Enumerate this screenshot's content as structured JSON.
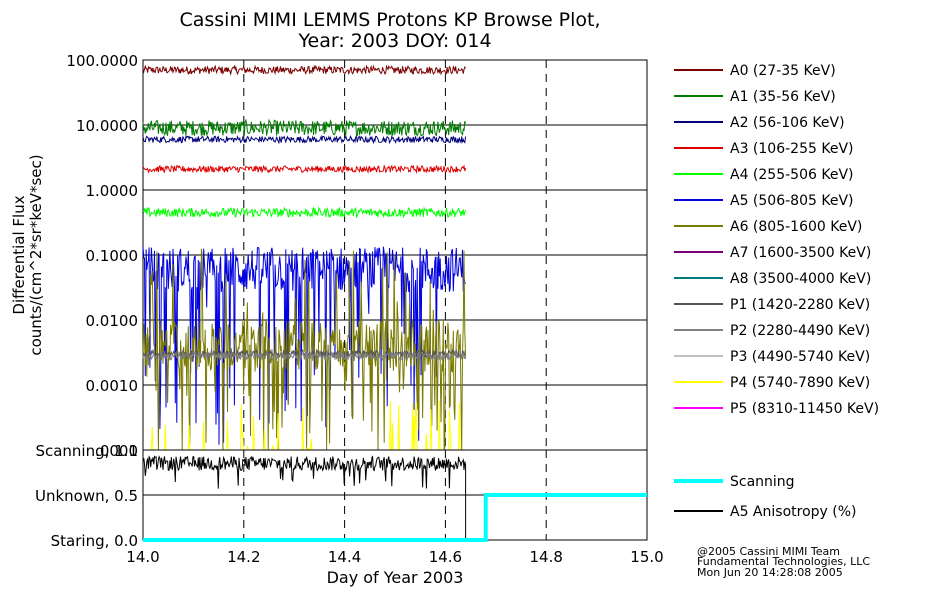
{
  "chart_data": [
    {
      "type": "line",
      "title": "Cassini MIMI LEMMS Protons KP Browse Plot,",
      "subtitle": "Year: 2003 DOY: 014",
      "ylabel": "Differential Flux",
      "ylabel2": "counts/(cm^2*sr*keV*sec)",
      "yscale": "log",
      "ylim": [
        0.0001,
        100
      ],
      "xlim": [
        14.0,
        15.0
      ],
      "grid": true,
      "yticks": [
        "100.0000",
        "10.0000",
        "1.0000",
        "0.1000",
        "0.0100",
        "0.0010",
        ".0001"
      ],
      "legend_position": "right",
      "series": [
        {
          "name": "A0 (27-35 KeV)",
          "color": "#7a0000",
          "mean": 70,
          "jitter": 0.06,
          "end": 14.64
        },
        {
          "name": "A1 (35-56 KeV)",
          "color": "#007a00",
          "mean": 9,
          "jitter": 0.12,
          "end": 14.64
        },
        {
          "name": "A2 (56-106 KeV)",
          "color": "#00007a",
          "mean": 6,
          "jitter": 0.05,
          "end": 14.64
        },
        {
          "name": "A3 (106-255 KeV)",
          "color": "#e00000",
          "mean": 2.1,
          "jitter": 0.05,
          "end": 14.64
        },
        {
          "name": "A4 (255-506 KeV)",
          "color": "#00ff00",
          "mean": 0.45,
          "jitter": 0.07,
          "end": 14.64
        },
        {
          "name": "A5 (506-805 KeV)",
          "color": "#0000e0",
          "mean": 0.06,
          "jitter": 0.35,
          "end": 14.64
        },
        {
          "name": "A6 (805-1600 KeV)",
          "color": "#7a7a00",
          "mean": 0.004,
          "jitter": 0.4,
          "end": 14.64
        },
        {
          "name": "A7 (1600-3500 KeV)",
          "color": "#7a007a",
          "mean": null,
          "jitter": 0,
          "end": 14.64
        },
        {
          "name": "A8 (3500-4000 KeV)",
          "color": "#007a7a",
          "mean": null,
          "jitter": 0,
          "end": 14.64
        },
        {
          "name": "P1 (1420-2280 KeV)",
          "color": "#555555",
          "mean": 0.003,
          "jitter": 0.06,
          "end": 14.64
        },
        {
          "name": "P2 (2280-4490 KeV)",
          "color": "#808080",
          "mean": 0.0028,
          "jitter": 0.06,
          "end": 14.64
        },
        {
          "name": "P3 (4490-5740 KeV)",
          "color": "#c0c0c0",
          "mean": null,
          "jitter": 0,
          "end": 14.64
        },
        {
          "name": "P4 (5740-7890 KeV)",
          "color": "#ffff00",
          "mean": 0.0002,
          "jitter": 0.5,
          "end": 14.64
        },
        {
          "name": "P5 (8310-11450 KeV)",
          "color": "#ff00ff",
          "mean": null,
          "jitter": 0,
          "end": 14.64
        }
      ]
    },
    {
      "type": "line",
      "xlabel": "Day of Year 2003",
      "xlim": [
        14.0,
        15.0
      ],
      "xticks": [
        "14.0",
        "14.2",
        "14.4",
        "14.6",
        "14.8",
        "15.0"
      ],
      "ylim": [
        0.0,
        1.0
      ],
      "yticks": [
        "Scanning, 1.0",
        "Unknown, 0.5",
        "Staring, 0.0"
      ],
      "grid": true,
      "series": [
        {
          "name": "Scanning",
          "color": "#00ffff",
          "x": [
            14.0,
            14.68,
            14.68,
            15.0
          ],
          "y": [
            0.0,
            0.0,
            0.5,
            0.5
          ]
        },
        {
          "name": "A5 Anisotropy (%)",
          "color": "#000000",
          "mean": 0.85,
          "jitter": 0.08,
          "end": 14.64
        }
      ]
    }
  ],
  "footer": {
    "line1": "@2005 Cassini MIMI Team",
    "line2": "Fundamental Technologies, LLC",
    "line3": "Mon Jun 20 14:28:08 2005"
  }
}
